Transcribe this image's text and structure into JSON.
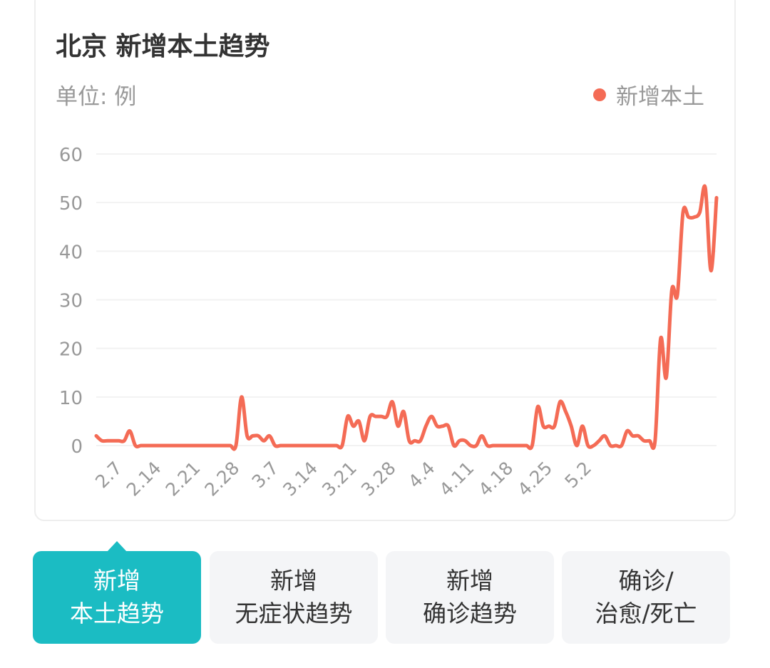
{
  "header": {
    "title": "北京 新增本土趋势",
    "unit_label": "单位: 例"
  },
  "legend": {
    "label": "新增本土",
    "color": "#f46b55"
  },
  "tabs": [
    {
      "line1": "新增",
      "line2": "本土趋势",
      "active": true
    },
    {
      "line1": "新增",
      "line2": "无症状趋势",
      "active": false
    },
    {
      "line1": "新增",
      "line2": "确诊趋势",
      "active": false
    },
    {
      "line1": "确诊/",
      "line2": "治愈/死亡",
      "active": false
    }
  ],
  "accent_color": "#1bbcc3",
  "chart_data": {
    "type": "line",
    "series_color": "#f46b55",
    "ylim": [
      0,
      60
    ],
    "y_ticks": [
      0,
      10,
      20,
      30,
      40,
      50,
      60
    ],
    "x_tick_labels": [
      "2.7",
      "2.14",
      "2.21",
      "2.28",
      "3.7",
      "3.14",
      "3.21",
      "3.28",
      "4.4",
      "4.11",
      "4.18",
      "4.25",
      "5.2"
    ],
    "x_start": "2.4",
    "x_end": "5.2",
    "grid": true,
    "legend_position": "top-right",
    "series": [
      {
        "name": "新增本土",
        "values": [
          2,
          1,
          1,
          1,
          1,
          1,
          3,
          0,
          0,
          0,
          0,
          0,
          0,
          0,
          0,
          0,
          0,
          0,
          0,
          0,
          0,
          0,
          0,
          0,
          0,
          0,
          10,
          2,
          2,
          2,
          1,
          2,
          0,
          0,
          0,
          0,
          0,
          0,
          0,
          0,
          0,
          0,
          0,
          0,
          0,
          6,
          4,
          5,
          1,
          6,
          6,
          6,
          6,
          9,
          4,
          7,
          1,
          1,
          1,
          4,
          6,
          4,
          4,
          4,
          0,
          1,
          1,
          0,
          0,
          2,
          0,
          0,
          0,
          0,
          0,
          0,
          0,
          0,
          0,
          8,
          4,
          4,
          4,
          9,
          7,
          4,
          0,
          4,
          0,
          0,
          1,
          2,
          0,
          0,
          0,
          3,
          2,
          2,
          1,
          1,
          1,
          22,
          14,
          32,
          31,
          48,
          47,
          47,
          48,
          53,
          36,
          51
        ]
      }
    ]
  }
}
